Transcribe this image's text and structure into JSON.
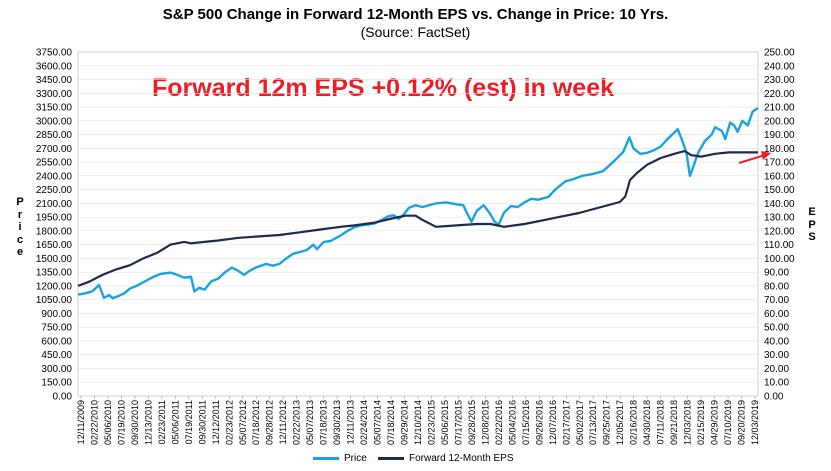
{
  "chart_data": {
    "type": "line",
    "title": "S&P 500 Change in Forward 12-Month EPS vs. Change in Price: 10 Yrs.",
    "subtitle": "(Source: FactSet)",
    "annotation": "Forward 12m EPS +0.12% (est) in week",
    "ylabel_left": "Price",
    "ylabel_right": "EPS",
    "ylim_left": [
      0,
      3750
    ],
    "ylim_right": [
      0,
      250
    ],
    "y_ticks_left": [
      "3750.00",
      "3600.00",
      "3450.00",
      "3300.00",
      "3150.00",
      "3000.00",
      "2850.00",
      "2700.00",
      "2550.00",
      "2400.00",
      "2250.00",
      "2100.00",
      "1950.00",
      "1800.00",
      "1650.00",
      "1500.00",
      "1350.00",
      "1200.00",
      "1050.00",
      "900.00",
      "750.00",
      "600.00",
      "450.00",
      "300.00",
      "150.00",
      "0.00"
    ],
    "y_ticks_right": [
      "250.00",
      "240.00",
      "230.00",
      "220.00",
      "210.00",
      "200.00",
      "190.00",
      "180.00",
      "170.00",
      "160.00",
      "150.00",
      "140.00",
      "130.00",
      "120.00",
      "110.00",
      "100.00",
      "90.00",
      "80.00",
      "70.00",
      "60.00",
      "50.00",
      "40.00",
      "30.00",
      "20.00",
      "10.00",
      "0.00"
    ],
    "x_tick_labels": [
      "12/11/2009",
      "02/22/2010",
      "05/06/2010",
      "07/19/2010",
      "09/30/2010",
      "12/13/2010",
      "02/23/2011",
      "05/06/2011",
      "07/19/2011",
      "09/30/2011",
      "12/12/2011",
      "02/23/2012",
      "05/07/2012",
      "07/18/2012",
      "09/28/2012",
      "12/11/2012",
      "02/22/2013",
      "05/07/2013",
      "07/18/2013",
      "09/30/2013",
      "12/11/2013",
      "02/24/2014",
      "05/07/2014",
      "07/18/2014",
      "09/29/2014",
      "12/10/2014",
      "02/23/2015",
      "05/06/2015",
      "07/17/2015",
      "09/28/2015",
      "12/08/2015",
      "02/22/2016",
      "05/04/2016",
      "07/15/2016",
      "09/26/2016",
      "12/07/2016",
      "02/17/2017",
      "05/02/2017",
      "07/13/2017",
      "09/25/2017",
      "12/05/2017",
      "02/16/2018",
      "04/30/2018",
      "07/11/2018",
      "09/21/2018",
      "12/03/2018",
      "02/15/2019",
      "04/29/2019",
      "07/10/2019",
      "09/20/2019",
      "12/03/2019"
    ],
    "x_range": [
      2009.94,
      2019.93
    ],
    "series": [
      {
        "name": "Price",
        "color": "#1aa3e0",
        "axis": "left",
        "x": [
          2009.94,
          2010.05,
          2010.15,
          2010.25,
          2010.32,
          2010.4,
          2010.45,
          2010.55,
          2010.62,
          2010.7,
          2010.8,
          2010.95,
          2011.05,
          2011.15,
          2011.3,
          2011.4,
          2011.5,
          2011.6,
          2011.65,
          2011.72,
          2011.8,
          2011.9,
          2012.0,
          2012.1,
          2012.2,
          2012.28,
          2012.38,
          2012.45,
          2012.55,
          2012.7,
          2012.8,
          2012.9,
          2013.0,
          2013.1,
          2013.3,
          2013.4,
          2013.45,
          2013.55,
          2013.65,
          2013.8,
          2013.9,
          2014.0,
          2014.1,
          2014.2,
          2014.3,
          2014.4,
          2014.5,
          2014.58,
          2014.65,
          2014.7,
          2014.75,
          2014.8,
          2014.9,
          2015.0,
          2015.1,
          2015.2,
          2015.35,
          2015.5,
          2015.6,
          2015.65,
          2015.72,
          2015.8,
          2015.9,
          2016.0,
          2016.06,
          2016.12,
          2016.2,
          2016.3,
          2016.4,
          2016.5,
          2016.6,
          2016.7,
          2016.85,
          2016.95,
          2017.1,
          2017.2,
          2017.35,
          2017.5,
          2017.65,
          2017.8,
          2017.95,
          2018.04,
          2018.1,
          2018.2,
          2018.3,
          2018.4,
          2018.5,
          2018.6,
          2018.75,
          2018.82,
          2018.88,
          2018.93,
          2018.98,
          2019.05,
          2019.15,
          2019.25,
          2019.3,
          2019.4,
          2019.45,
          2019.52,
          2019.58,
          2019.63,
          2019.7,
          2019.78,
          2019.85,
          2019.93
        ],
        "y": [
          1105,
          1120,
          1140,
          1210,
          1070,
          1100,
          1065,
          1095,
          1120,
          1170,
          1200,
          1260,
          1300,
          1330,
          1345,
          1320,
          1290,
          1300,
          1140,
          1180,
          1160,
          1250,
          1280,
          1350,
          1400,
          1370,
          1320,
          1360,
          1400,
          1440,
          1420,
          1440,
          1500,
          1550,
          1590,
          1650,
          1600,
          1680,
          1690,
          1750,
          1800,
          1840,
          1860,
          1870,
          1880,
          1920,
          1960,
          1970,
          1930,
          1960,
          2000,
          2050,
          2080,
          2060,
          2080,
          2100,
          2110,
          2090,
          2080,
          2000,
          1900,
          2020,
          2080,
          1980,
          1900,
          1870,
          2000,
          2070,
          2060,
          2110,
          2150,
          2140,
          2170,
          2250,
          2340,
          2360,
          2400,
          2420,
          2450,
          2550,
          2660,
          2820,
          2700,
          2640,
          2650,
          2680,
          2720,
          2800,
          2910,
          2780,
          2650,
          2400,
          2500,
          2650,
          2780,
          2850,
          2930,
          2890,
          2800,
          2980,
          2950,
          2880,
          3000,
          2950,
          3100,
          3140
        ]
      },
      {
        "name": "Forward 12-Month EPS",
        "color": "#1f2a4a",
        "axis": "right",
        "x": [
          2009.94,
          2010.1,
          2010.3,
          2010.5,
          2010.7,
          2010.9,
          2011.1,
          2011.3,
          2011.5,
          2011.6,
          2011.8,
          2012.0,
          2012.3,
          2012.6,
          2012.9,
          2013.2,
          2013.5,
          2013.8,
          2014.0,
          2014.3,
          2014.55,
          2014.75,
          2014.9,
          2015.0,
          2015.2,
          2015.5,
          2015.8,
          2016.0,
          2016.2,
          2016.5,
          2016.8,
          2017.0,
          2017.3,
          2017.6,
          2017.9,
          2017.98,
          2018.05,
          2018.15,
          2018.3,
          2018.5,
          2018.7,
          2018.85,
          2018.95,
          2019.1,
          2019.3,
          2019.5,
          2019.7,
          2019.93
        ],
        "y": [
          80,
          83,
          88,
          92,
          95,
          100,
          104,
          110,
          112,
          111,
          112,
          113,
          115,
          116,
          117,
          119,
          121,
          123,
          124,
          126,
          129,
          131,
          131,
          128,
          123,
          124,
          125,
          125,
          123,
          125,
          128,
          130,
          133,
          137,
          141,
          145,
          157,
          162,
          168,
          173,
          176,
          178,
          175,
          174,
          176,
          177,
          177,
          177
        ]
      }
    ],
    "legend": [
      {
        "label": "Price",
        "color": "#1aa3e0"
      },
      {
        "label": "Forward 12-Month EPS",
        "color": "#1f2a4a"
      }
    ],
    "legend_position": "bottom"
  }
}
